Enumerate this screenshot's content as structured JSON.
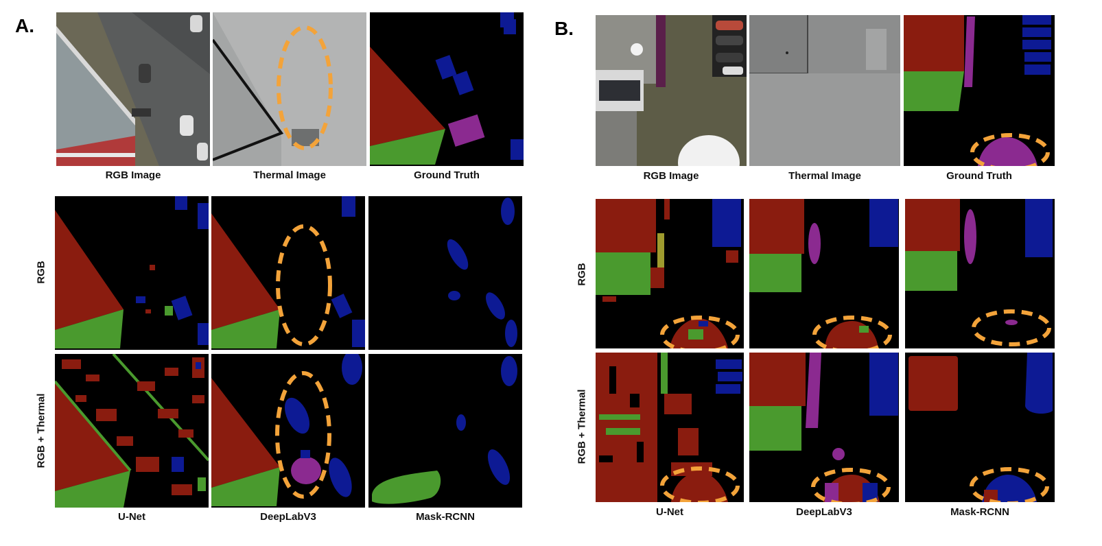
{
  "panels": [
    {
      "label": "A.",
      "top_captions": [
        "RGB Image",
        "Thermal Image",
        "Ground Truth"
      ],
      "row_labels": [
        "RGB",
        "RGB + Thermal"
      ],
      "model_captions": [
        "U-Net",
        "DeepLabV3",
        "Mask-RCNN"
      ]
    },
    {
      "label": "B.",
      "top_captions": [
        "RGB Image",
        "Thermal Image",
        "Ground Truth"
      ],
      "row_labels": [
        "RGB",
        "RGB + Thermal"
      ],
      "model_captions": [
        "U-Net",
        "DeepLabV3",
        "Mask-RCNN"
      ]
    }
  ],
  "colors": {
    "class_red": "#8a1c0f",
    "class_green": "#4a9a2e",
    "class_blue": "#0d1a94",
    "class_purple": "#8b2a90",
    "highlight_orange": "#f3a33a",
    "background": "#000000"
  }
}
